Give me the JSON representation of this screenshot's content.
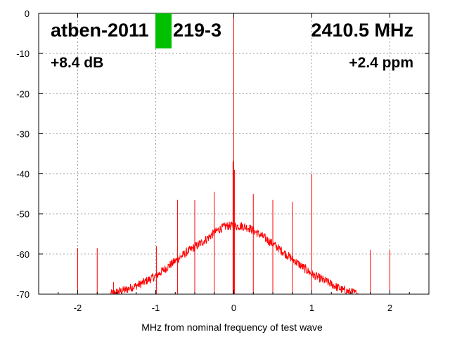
{
  "header": {
    "device_name": "atben-2011",
    "device_suffix": "219-3",
    "frequency": "2410.5 MHz",
    "gain": "+8.4 dB",
    "offset": "+2.4 ppm"
  },
  "status_color": "#00c000",
  "chart_data": {
    "type": "line",
    "xlabel": "MHz from nominal frequency of test wave",
    "ylabel": "",
    "xlim": [
      -2.5,
      2.5
    ],
    "ylim": [
      -70,
      0
    ],
    "xticks": [
      -2,
      -1,
      0,
      1,
      2
    ],
    "xtick_labels": [
      "-2",
      "-1",
      "0",
      "1",
      "2"
    ],
    "yticks": [
      0,
      -10,
      -20,
      -30,
      -40,
      -50,
      -60,
      -70
    ],
    "ytick_labels": [
      "0",
      "-10",
      "-20",
      "-30",
      "-40",
      "-50",
      "-60",
      "-70"
    ],
    "grid": true,
    "series_color": "#ff0000",
    "noise_floor_envelope": [
      [
        -1.58,
        -70
      ],
      [
        -1.5,
        -69.5
      ],
      [
        -1.4,
        -69
      ],
      [
        -1.2,
        -67.5
      ],
      [
        -1.0,
        -65.5
      ],
      [
        -0.8,
        -62.5
      ],
      [
        -0.6,
        -59.5
      ],
      [
        -0.4,
        -57
      ],
      [
        -0.2,
        -54
      ],
      [
        -0.1,
        -53
      ],
      [
        0.0,
        -53
      ],
      [
        0.1,
        -53
      ],
      [
        0.2,
        -53.5
      ],
      [
        0.4,
        -56
      ],
      [
        0.6,
        -59
      ],
      [
        0.8,
        -62
      ],
      [
        1.0,
        -65
      ],
      [
        1.2,
        -67
      ],
      [
        1.4,
        -69
      ],
      [
        1.5,
        -69.5
      ],
      [
        1.6,
        -70
      ]
    ],
    "spurs": [
      {
        "x": -2.0,
        "y": -58.5
      },
      {
        "x": -1.75,
        "y": -58.5
      },
      {
        "x": -1.54,
        "y": -67
      },
      {
        "x": -0.99,
        "y": -58
      },
      {
        "x": -0.72,
        "y": -46.5
      },
      {
        "x": -0.5,
        "y": -46.5
      },
      {
        "x": -0.25,
        "y": -44.5
      },
      {
        "x": -0.01,
        "y": -37
      },
      {
        "x": 0.0,
        "y": 0
      },
      {
        "x": 0.01,
        "y": -39
      },
      {
        "x": 0.25,
        "y": -45
      },
      {
        "x": 0.5,
        "y": -46.5
      },
      {
        "x": 0.75,
        "y": -47
      },
      {
        "x": 1.0,
        "y": -40
      },
      {
        "x": 1.75,
        "y": -59
      },
      {
        "x": 2.0,
        "y": -59
      }
    ]
  }
}
